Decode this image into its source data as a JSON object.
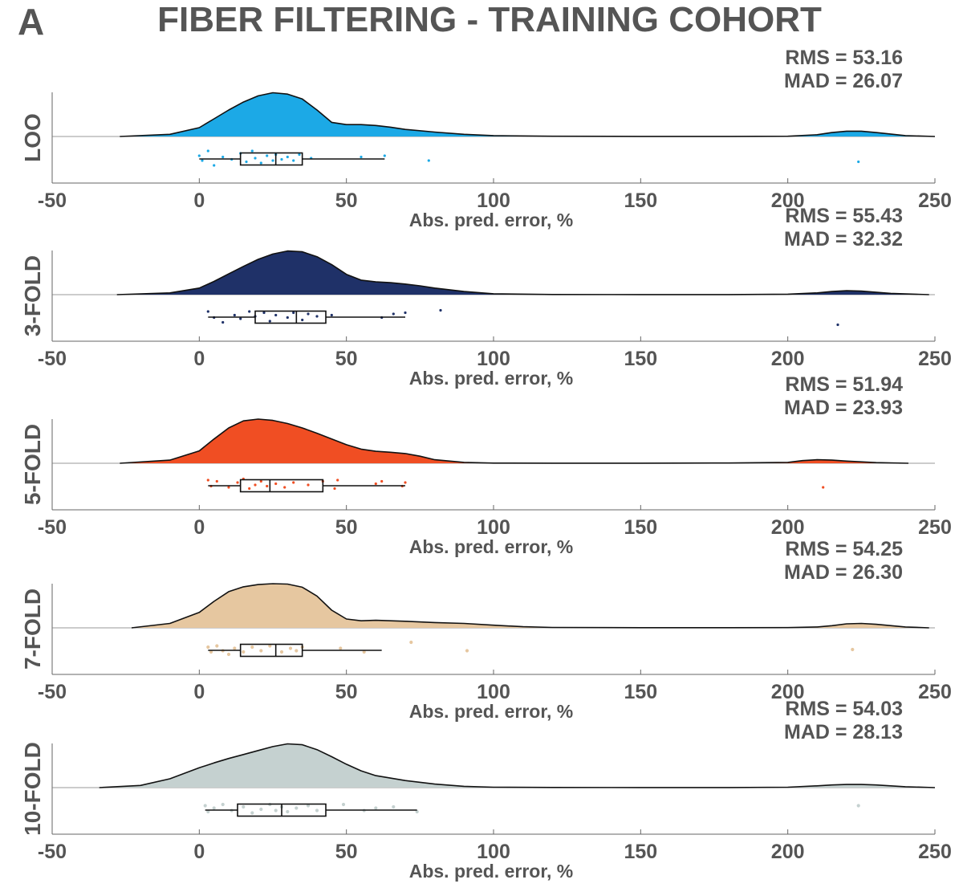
{
  "panel_letter": "A",
  "title": "FIBER FILTERING - TRAINING COHORT",
  "chart_data": [
    {
      "type": "raincloud",
      "label": "LOO",
      "color": "#1ca9e6",
      "stats": [
        "RMS = 53.16",
        "MAD = 26.07"
      ],
      "xlabel": "Abs. pred. error, %",
      "xlim": [
        -50,
        250
      ],
      "xticks": [
        "-50",
        "0",
        "50",
        "100",
        "150",
        "200",
        "250"
      ],
      "density_x": [
        -27,
        -10,
        0,
        5,
        10,
        15,
        20,
        25,
        30,
        35,
        40,
        45,
        50,
        55,
        60,
        65,
        70,
        80,
        90,
        100,
        120,
        150,
        180,
        200,
        210,
        215,
        220,
        225,
        230,
        240,
        250
      ],
      "density_y": [
        0.0,
        0.05,
        0.2,
        0.4,
        0.6,
        0.78,
        0.92,
        0.99,
        0.96,
        0.85,
        0.6,
        0.32,
        0.27,
        0.27,
        0.25,
        0.21,
        0.16,
        0.1,
        0.05,
        0.02,
        0.005,
        0.002,
        0.002,
        0.005,
        0.04,
        0.09,
        0.12,
        0.12,
        0.09,
        0.02,
        0.0
      ],
      "box": {
        "whisker_low": 0,
        "q1": 14,
        "median": 26,
        "q3": 35,
        "whisker_high": 63
      },
      "points": [
        [
          0,
          0.4
        ],
        [
          1,
          0.6
        ],
        [
          3,
          0.2
        ],
        [
          5,
          0.8
        ],
        [
          8,
          0.45
        ],
        [
          11,
          0.55
        ],
        [
          14,
          0.3
        ],
        [
          16,
          0.65
        ],
        [
          18,
          0.2
        ],
        [
          19,
          0.5
        ],
        [
          21,
          0.7
        ],
        [
          23,
          0.4
        ],
        [
          25,
          0.6
        ],
        [
          26,
          0.35
        ],
        [
          28,
          0.55
        ],
        [
          30,
          0.45
        ],
        [
          32,
          0.6
        ],
        [
          34,
          0.35
        ],
        [
          38,
          0.5
        ],
        [
          55,
          0.45
        ],
        [
          63,
          0.4
        ],
        [
          78,
          0.6
        ],
        [
          224,
          0.65
        ]
      ]
    },
    {
      "type": "raincloud",
      "label": "3-FOLD",
      "color": "#1f3168",
      "stats": [
        "RMS = 55.43",
        "MAD = 32.32"
      ],
      "xlabel": "Abs. pred. error, %",
      "xlim": [
        -50,
        250
      ],
      "xticks": [
        "-50",
        "0",
        "50",
        "100",
        "150",
        "200",
        "250"
      ],
      "density_x": [
        -28,
        -10,
        0,
        5,
        10,
        15,
        20,
        25,
        30,
        35,
        40,
        45,
        50,
        55,
        60,
        65,
        70,
        75,
        80,
        90,
        100,
        120,
        150,
        180,
        200,
        210,
        215,
        220,
        225,
        235,
        248
      ],
      "density_y": [
        0.0,
        0.04,
        0.15,
        0.3,
        0.47,
        0.64,
        0.8,
        0.92,
        0.99,
        0.97,
        0.86,
        0.68,
        0.46,
        0.33,
        0.29,
        0.27,
        0.24,
        0.2,
        0.15,
        0.07,
        0.02,
        0.004,
        0.002,
        0.002,
        0.01,
        0.04,
        0.07,
        0.09,
        0.08,
        0.03,
        0.0
      ],
      "box": {
        "whisker_low": 3,
        "q1": 19,
        "median": 33,
        "q3": 43,
        "whisker_high": 70
      },
      "points": [
        [
          3,
          0.3
        ],
        [
          5,
          0.55
        ],
        [
          8,
          0.75
        ],
        [
          12,
          0.45
        ],
        [
          14,
          0.6
        ],
        [
          17,
          0.3
        ],
        [
          19,
          0.5
        ],
        [
          22,
          0.35
        ],
        [
          24,
          0.7
        ],
        [
          26,
          0.45
        ],
        [
          30,
          0.55
        ],
        [
          32,
          0.35
        ],
        [
          35,
          0.65
        ],
        [
          37,
          0.4
        ],
        [
          40,
          0.5
        ],
        [
          45,
          0.45
        ],
        [
          62,
          0.55
        ],
        [
          66,
          0.4
        ],
        [
          70,
          0.35
        ],
        [
          82,
          0.25
        ],
        [
          217,
          0.85
        ]
      ]
    },
    {
      "type": "raincloud",
      "label": "5-FOLD",
      "color": "#f04e23",
      "stats": [
        "RMS = 51.94",
        "MAD = 23.93"
      ],
      "xlabel": "Abs. pred. error, %",
      "xlim": [
        -50,
        250
      ],
      "xticks": [
        "-50",
        "0",
        "50",
        "100",
        "150",
        "200",
        "250"
      ],
      "density_x": [
        -27,
        -10,
        0,
        5,
        10,
        15,
        20,
        25,
        30,
        35,
        40,
        45,
        50,
        55,
        60,
        65,
        70,
        75,
        80,
        90,
        100,
        120,
        150,
        180,
        200,
        205,
        210,
        215,
        220,
        230,
        241
      ],
      "density_y": [
        0.0,
        0.07,
        0.28,
        0.55,
        0.8,
        0.96,
        1.0,
        0.97,
        0.9,
        0.8,
        0.68,
        0.55,
        0.42,
        0.32,
        0.27,
        0.25,
        0.22,
        0.16,
        0.08,
        0.02,
        0.004,
        0.002,
        0.002,
        0.005,
        0.02,
        0.06,
        0.08,
        0.07,
        0.05,
        0.015,
        0.0
      ],
      "box": {
        "whisker_low": 3,
        "q1": 14,
        "median": 24,
        "q3": 42,
        "whisker_high": 70
      },
      "points": [
        [
          3,
          0.3
        ],
        [
          4,
          0.55
        ],
        [
          6,
          0.35
        ],
        [
          10,
          0.6
        ],
        [
          13,
          0.4
        ],
        [
          15,
          0.25
        ],
        [
          17,
          0.65
        ],
        [
          19,
          0.5
        ],
        [
          21,
          0.35
        ],
        [
          23,
          0.55
        ],
        [
          26,
          0.45
        ],
        [
          29,
          0.6
        ],
        [
          32,
          0.4
        ],
        [
          37,
          0.5
        ],
        [
          42,
          0.35
        ],
        [
          46,
          0.65
        ],
        [
          47,
          0.3
        ],
        [
          60,
          0.45
        ],
        [
          62,
          0.35
        ],
        [
          69,
          0.55
        ],
        [
          70,
          0.4
        ],
        [
          212,
          0.6
        ]
      ]
    },
    {
      "type": "raincloud",
      "label": "7-FOLD",
      "color": "#e6c7a0",
      "stats": [
        "RMS = 54.25",
        "MAD = 26.30"
      ],
      "xlabel": "Abs. pred. error, %",
      "xlim": [
        -50,
        250
      ],
      "xticks": [
        "-50",
        "0",
        "50",
        "100",
        "150",
        "200",
        "250"
      ],
      "density_x": [
        -23,
        -10,
        0,
        5,
        10,
        15,
        20,
        25,
        30,
        35,
        40,
        45,
        50,
        55,
        60,
        70,
        80,
        90,
        100,
        110,
        120,
        150,
        180,
        200,
        210,
        215,
        220,
        225,
        230,
        240,
        248
      ],
      "density_y": [
        0.0,
        0.1,
        0.35,
        0.6,
        0.82,
        0.93,
        0.98,
        1.0,
        0.99,
        0.92,
        0.72,
        0.4,
        0.2,
        0.16,
        0.17,
        0.15,
        0.12,
        0.1,
        0.06,
        0.025,
        0.01,
        0.004,
        0.003,
        0.005,
        0.02,
        0.05,
        0.09,
        0.1,
        0.08,
        0.02,
        0.0
      ],
      "box": {
        "whisker_low": 3,
        "q1": 14,
        "median": 26,
        "q3": 35,
        "whisker_high": 62
      },
      "points": [
        [
          3,
          0.4
        ],
        [
          4,
          0.6
        ],
        [
          6,
          0.35
        ],
        [
          8,
          0.55
        ],
        [
          10,
          0.7
        ],
        [
          12,
          0.45
        ],
        [
          15,
          0.6
        ],
        [
          18,
          0.4
        ],
        [
          21,
          0.55
        ],
        [
          24,
          0.35
        ],
        [
          28,
          0.6
        ],
        [
          31,
          0.45
        ],
        [
          33,
          0.55
        ],
        [
          35,
          0.4
        ],
        [
          48,
          0.45
        ],
        [
          56,
          0.6
        ],
        [
          72,
          0.2
        ],
        [
          91,
          0.55
        ],
        [
          222,
          0.5
        ]
      ]
    },
    {
      "type": "raincloud",
      "label": "10-FOLD",
      "color": "#c5d1d0",
      "stats": [
        "RMS = 54.03",
        "MAD = 28.13"
      ],
      "xlabel": "Abs. pred. error, %",
      "xlim": [
        -50,
        250
      ],
      "xticks": [
        "-50",
        "0",
        "50",
        "100",
        "150",
        "200",
        "250"
      ],
      "density_x": [
        -34,
        -20,
        -10,
        0,
        5,
        10,
        15,
        20,
        25,
        30,
        35,
        40,
        45,
        50,
        55,
        60,
        70,
        80,
        90,
        100,
        120,
        150,
        180,
        200,
        210,
        215,
        220,
        225,
        230,
        240,
        250
      ],
      "density_y": [
        0.0,
        0.05,
        0.2,
        0.45,
        0.56,
        0.66,
        0.75,
        0.84,
        0.93,
        0.99,
        0.97,
        0.86,
        0.7,
        0.53,
        0.38,
        0.27,
        0.16,
        0.08,
        0.03,
        0.01,
        0.003,
        0.002,
        0.002,
        0.01,
        0.04,
        0.06,
        0.07,
        0.07,
        0.06,
        0.02,
        0.0
      ],
      "box": {
        "whisker_low": 2,
        "q1": 13,
        "median": 28,
        "q3": 43,
        "whisker_high": 74
      },
      "points": [
        [
          2,
          0.35
        ],
        [
          3,
          0.6
        ],
        [
          5,
          0.45
        ],
        [
          8,
          0.3
        ],
        [
          11,
          0.55
        ],
        [
          15,
          0.4
        ],
        [
          18,
          0.65
        ],
        [
          21,
          0.5
        ],
        [
          24,
          0.3
        ],
        [
          26,
          0.55
        ],
        [
          28,
          0.4
        ],
        [
          30,
          0.6
        ],
        [
          33,
          0.45
        ],
        [
          37,
          0.35
        ],
        [
          40,
          0.55
        ],
        [
          49,
          0.3
        ],
        [
          56,
          0.55
        ],
        [
          60,
          0.45
        ],
        [
          66,
          0.4
        ],
        [
          74,
          0.6
        ],
        [
          224,
          0.35
        ]
      ]
    }
  ]
}
